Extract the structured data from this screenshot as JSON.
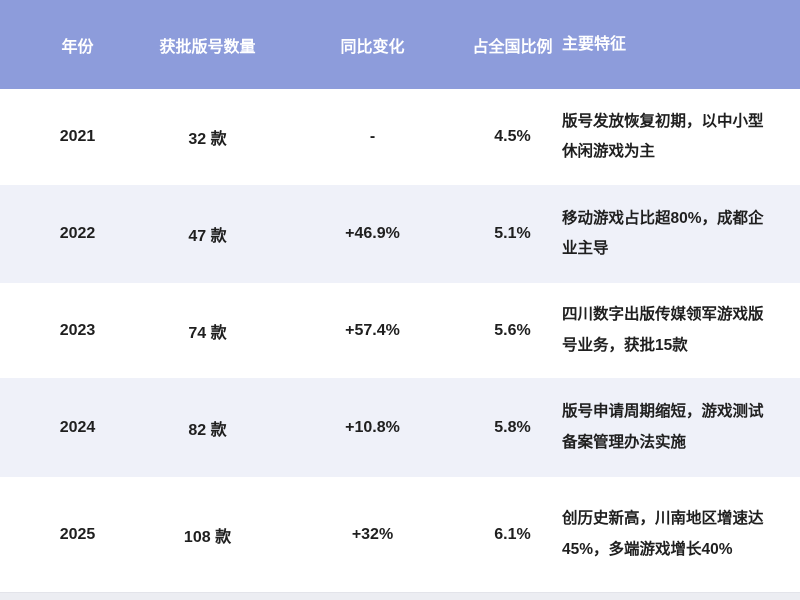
{
  "chart_data": {
    "type": "table",
    "title": "",
    "columns": [
      "年份",
      "获批版号数量",
      "同比变化",
      "占全国比例",
      "主要特征"
    ],
    "rows": [
      {
        "year": "2021",
        "count": "32 款",
        "change": "-",
        "share": "4.5%",
        "features": "版号发放恢复初期，以中小型休闲游戏为主"
      },
      {
        "year": "2022",
        "count": "47 款",
        "change": "+46.9%",
        "share": "5.1%",
        "features": "移动游戏占比超80%，成都企业主导"
      },
      {
        "year": "2023",
        "count": "74 款",
        "change": "+57.4%",
        "share": "5.6%",
        "features": "四川数字出版传媒领军游戏版号业务，获批15款"
      },
      {
        "year": "2024",
        "count": "82 款",
        "change": "+10.8%",
        "share": "5.8%",
        "features": "版号申请周期缩短，游戏测试备案管理办法实施"
      },
      {
        "year": "2025",
        "count": "108 款",
        "change": "+32%",
        "share": "6.1%",
        "features": "创历史新高，川南地区增速达45%，多端游戏增长40%"
      }
    ]
  },
  "colors": {
    "header_bg": "#8d9cdb",
    "header_text": "#ffffff",
    "row_bg": "#ffffff",
    "row_alt_bg": "#eff1f9",
    "body_text": "#1f1f1f",
    "bottom_strip": "#ecedf2"
  }
}
